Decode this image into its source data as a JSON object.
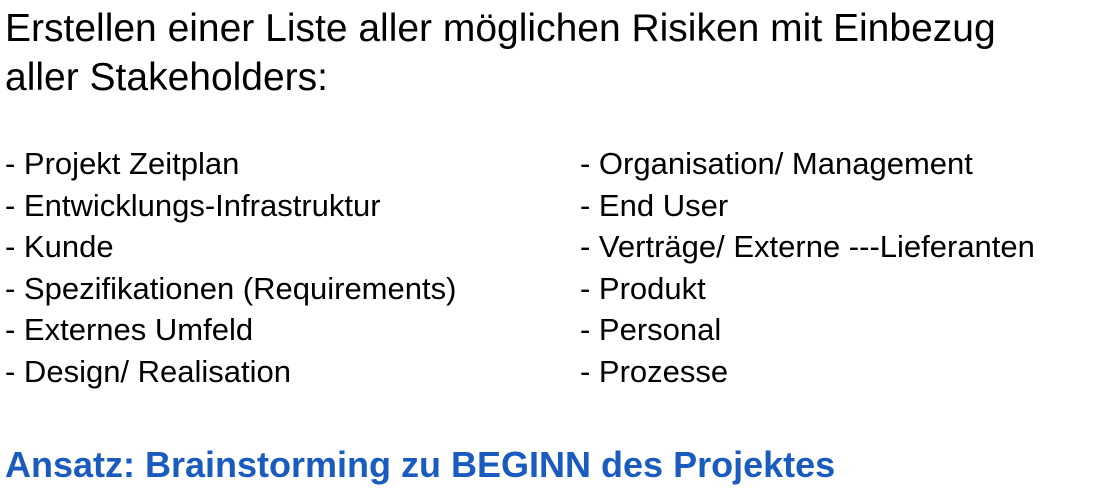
{
  "heading": {
    "line1": "Erstellen einer Liste aller möglichen Risiken mit Einbezug",
    "line2": "aller Stakeholders:"
  },
  "risk_areas": {
    "left": [
      "- Projekt Zeitplan",
      "- Entwicklungs-Infrastruktur",
      "- Kunde",
      "- Spezifikationen (Requirements)",
      "- Externes Umfeld",
      "- Design/ Realisation"
    ],
    "right": [
      "- Organisation/ Management",
      "- End User",
      "- Verträge/ Externe ---Lieferanten",
      "- Produkt",
      "- Personal",
      "- Prozesse"
    ]
  },
  "approach": {
    "text": "Ansatz: Brainstorming zu BEGINN des Projektes",
    "color": "#1a5bbf"
  }
}
